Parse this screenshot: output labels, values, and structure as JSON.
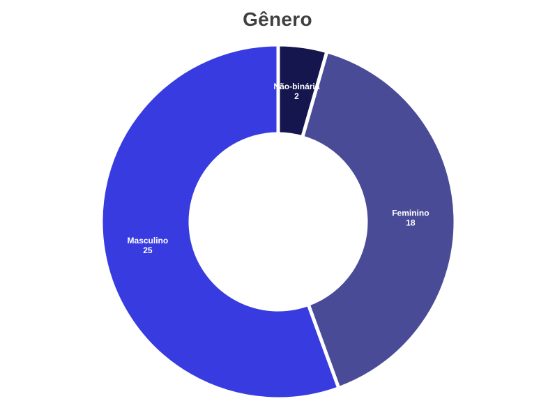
{
  "chart_data": {
    "type": "pie",
    "variant": "donut",
    "title": "Gênero",
    "categories": [
      "Não-binária",
      "Feminino",
      "Masculino"
    ],
    "values": [
      2,
      18,
      25
    ],
    "colors": [
      "#15164d",
      "#4a4b96",
      "#383ce0"
    ],
    "legend": "none",
    "labels_on_slices": true
  }
}
